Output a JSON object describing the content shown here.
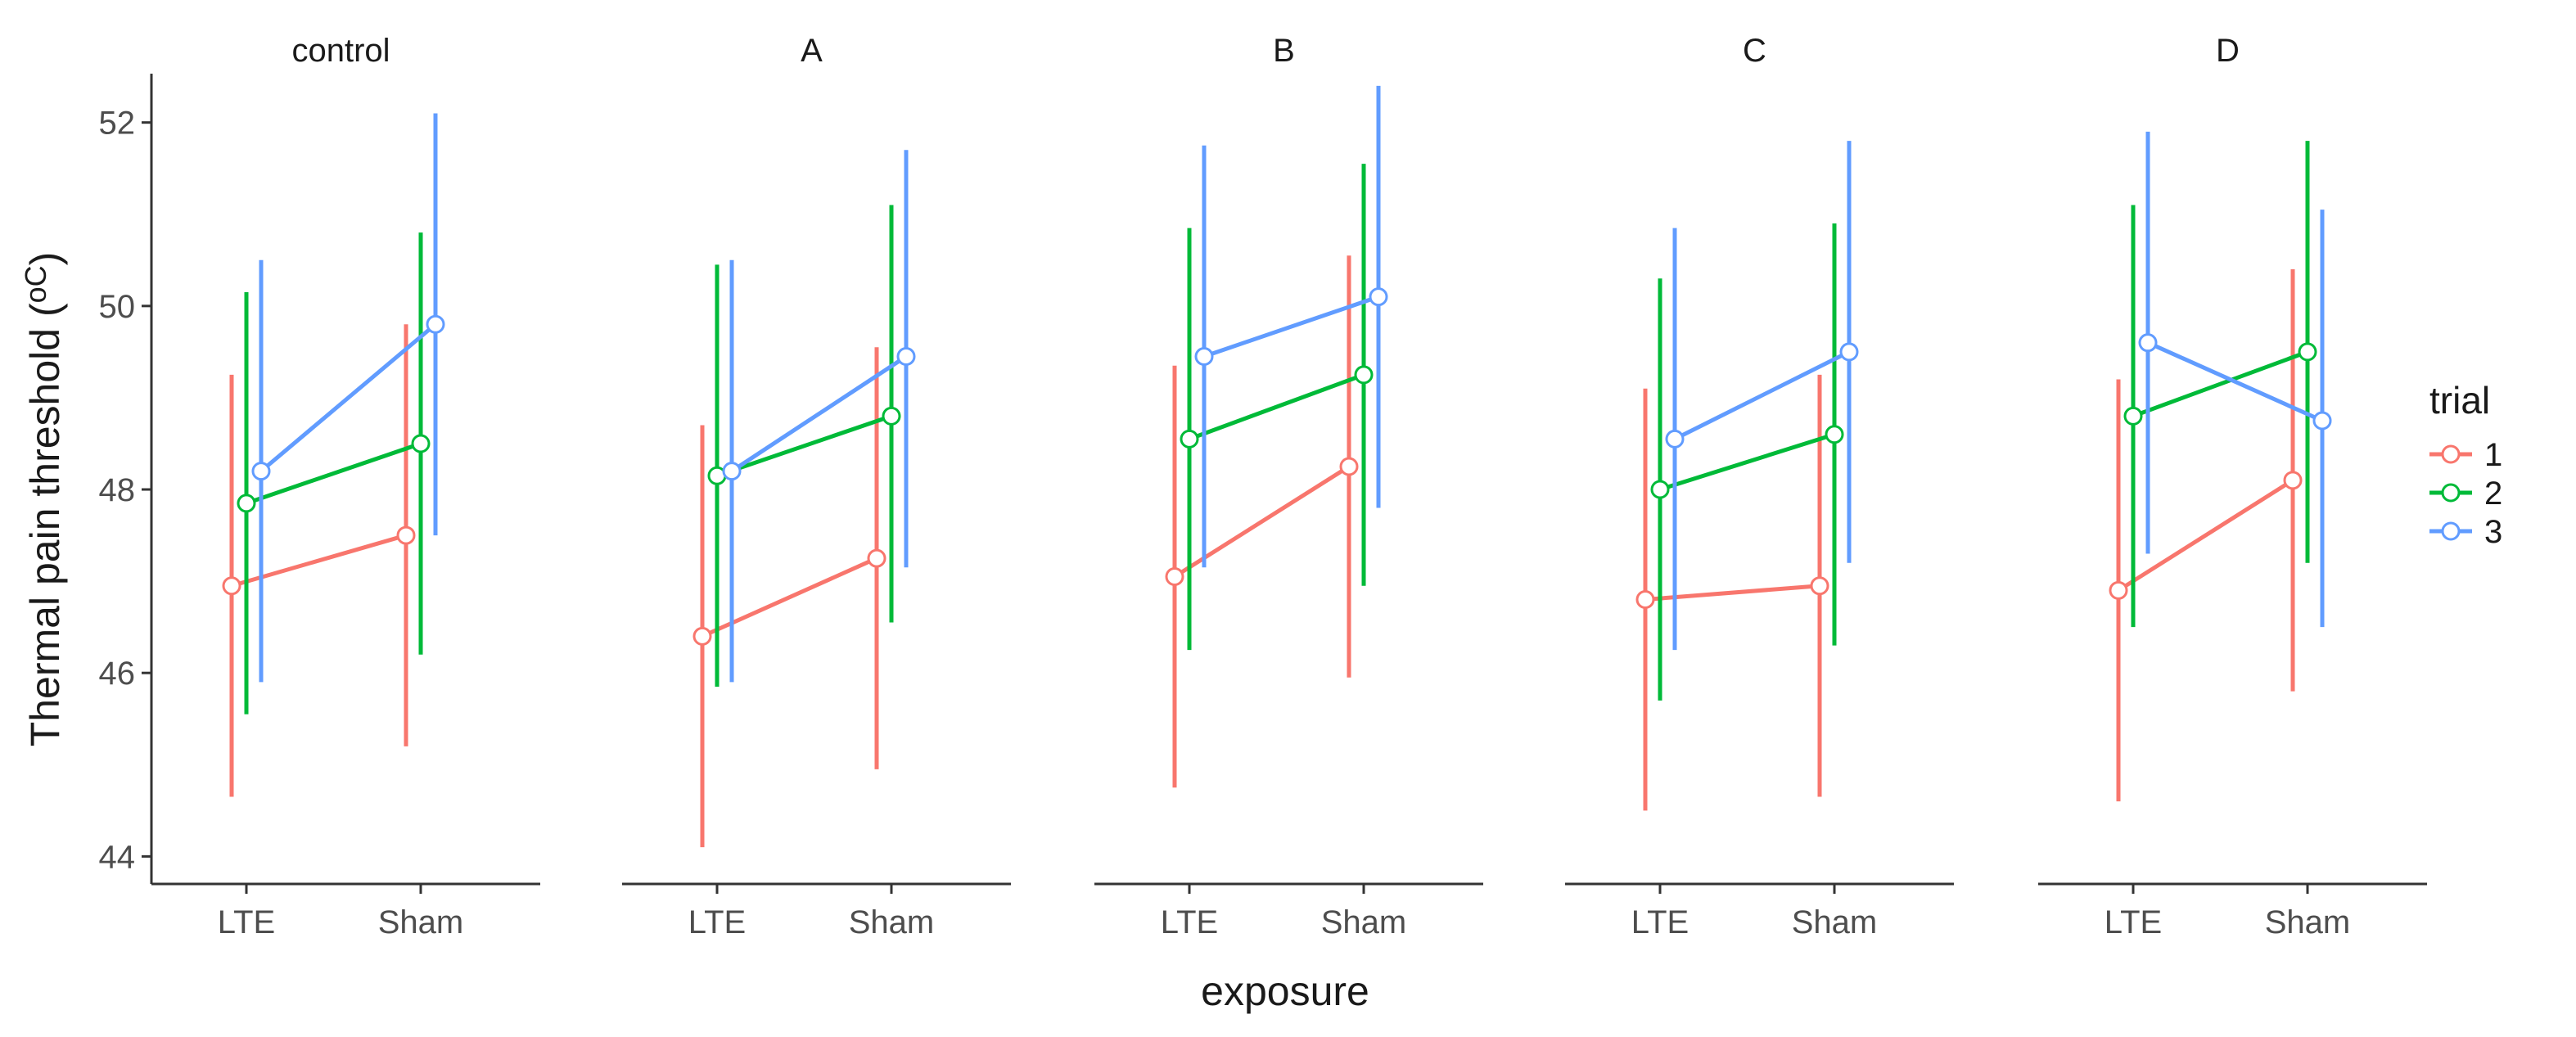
{
  "chart_data": {
    "type": "line",
    "ylabel_main": "Thermal pain threshold (",
    "ylabel_unit": "oC",
    "ylabel_close": ")",
    "xlabel": "exposure",
    "ylim": [
      43.7,
      52.8
    ],
    "yticks": [
      "44",
      "46",
      "48",
      "50",
      "52"
    ],
    "categories": [
      "LTE",
      "Sham"
    ],
    "legend": {
      "title": "trial",
      "position": "right",
      "entries": [
        "1",
        "2",
        "3"
      ]
    },
    "series_colors": {
      "1": "#F8766D",
      "2": "#00BA38",
      "3": "#619CFF"
    },
    "facets": [
      {
        "title": "control",
        "series": [
          {
            "name": "1",
            "mean": [
              46.95,
              47.5
            ],
            "lower": [
              44.65,
              45.2
            ],
            "upper": [
              49.25,
              49.8
            ]
          },
          {
            "name": "2",
            "mean": [
              47.85,
              48.5
            ],
            "lower": [
              45.55,
              46.2
            ],
            "upper": [
              50.15,
              50.8
            ]
          },
          {
            "name": "3",
            "mean": [
              48.2,
              49.8
            ],
            "lower": [
              45.9,
              47.5
            ],
            "upper": [
              50.5,
              52.1
            ]
          }
        ]
      },
      {
        "title": "A",
        "series": [
          {
            "name": "1",
            "mean": [
              46.4,
              47.25
            ],
            "lower": [
              44.1,
              44.95
            ],
            "upper": [
              48.7,
              49.55
            ]
          },
          {
            "name": "2",
            "mean": [
              48.15,
              48.8
            ],
            "lower": [
              45.85,
              46.55
            ],
            "upper": [
              50.45,
              51.1
            ]
          },
          {
            "name": "3",
            "mean": [
              48.2,
              49.45
            ],
            "lower": [
              45.9,
              47.15
            ],
            "upper": [
              50.5,
              51.7
            ]
          }
        ]
      },
      {
        "title": "B",
        "series": [
          {
            "name": "1",
            "mean": [
              47.05,
              48.25
            ],
            "lower": [
              44.75,
              45.95
            ],
            "upper": [
              49.35,
              50.55
            ]
          },
          {
            "name": "2",
            "mean": [
              48.55,
              49.25
            ],
            "lower": [
              46.25,
              46.95
            ],
            "upper": [
              50.85,
              51.55
            ]
          },
          {
            "name": "3",
            "mean": [
              49.45,
              50.1
            ],
            "lower": [
              47.15,
              47.8
            ],
            "upper": [
              51.75,
              52.4
            ]
          }
        ]
      },
      {
        "title": "C",
        "series": [
          {
            "name": "1",
            "mean": [
              46.8,
              46.95
            ],
            "lower": [
              44.5,
              44.65
            ],
            "upper": [
              49.1,
              49.25
            ]
          },
          {
            "name": "2",
            "mean": [
              48.0,
              48.6
            ],
            "lower": [
              45.7,
              46.3
            ],
            "upper": [
              50.3,
              50.9
            ]
          },
          {
            "name": "3",
            "mean": [
              48.55,
              49.5
            ],
            "lower": [
              46.25,
              47.2
            ],
            "upper": [
              50.85,
              51.8
            ]
          }
        ]
      },
      {
        "title": "D",
        "series": [
          {
            "name": "1",
            "mean": [
              46.9,
              48.1
            ],
            "lower": [
              44.6,
              45.8
            ],
            "upper": [
              49.2,
              50.4
            ]
          },
          {
            "name": "2",
            "mean": [
              48.8,
              49.5
            ],
            "lower": [
              46.5,
              47.2
            ],
            "upper": [
              51.1,
              51.8
            ]
          },
          {
            "name": "3",
            "mean": [
              49.6,
              48.75
            ],
            "lower": [
              47.3,
              46.5
            ],
            "upper": [
              51.9,
              51.05
            ]
          }
        ]
      }
    ]
  }
}
